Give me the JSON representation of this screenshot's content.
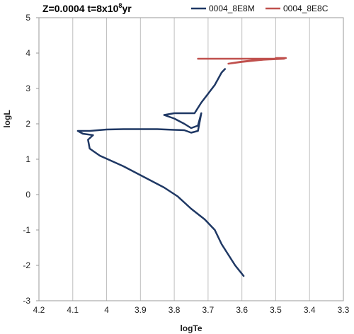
{
  "chart_data": {
    "type": "line",
    "title_parts": {
      "prefix": "Z=0.0004 t=8x10",
      "superscript": "8",
      "suffix": "yr"
    },
    "xlabel": "logTe",
    "ylabel": "logL",
    "xlim": [
      4.2,
      3.3
    ],
    "ylim": [
      -3,
      5
    ],
    "x_inverted": true,
    "x_ticks": [
      "4.2",
      "4.1",
      "4",
      "3.9",
      "3.8",
      "3.7",
      "3.6",
      "3.5",
      "3.4",
      "3.3"
    ],
    "y_ticks": [
      "5",
      "4",
      "3",
      "2",
      "1",
      "0",
      "-1",
      "-2",
      "-3"
    ],
    "grid": "vertical-major",
    "legend": "top-right",
    "series": [
      {
        "name": "0004_8E8M",
        "color": "#1f3864",
        "points": [
          [
            3.595,
            -2.3
          ],
          [
            3.62,
            -2.0
          ],
          [
            3.66,
            -1.4
          ],
          [
            3.68,
            -1.0
          ],
          [
            3.71,
            -0.7
          ],
          [
            3.75,
            -0.4
          ],
          [
            3.79,
            -0.05
          ],
          [
            3.83,
            0.2
          ],
          [
            3.89,
            0.5
          ],
          [
            3.95,
            0.8
          ],
          [
            4.02,
            1.1
          ],
          [
            4.05,
            1.3
          ],
          [
            4.055,
            1.55
          ],
          [
            4.04,
            1.68
          ],
          [
            4.07,
            1.72
          ],
          [
            4.085,
            1.8
          ],
          [
            4.05,
            1.8
          ],
          [
            4.0,
            1.84
          ],
          [
            3.95,
            1.85
          ],
          [
            3.9,
            1.85
          ],
          [
            3.85,
            1.85
          ],
          [
            3.8,
            1.83
          ],
          [
            3.77,
            1.82
          ],
          [
            3.75,
            1.75
          ],
          [
            3.73,
            1.8
          ],
          [
            3.72,
            2.3
          ],
          [
            3.73,
            1.95
          ],
          [
            3.75,
            1.88
          ],
          [
            3.77,
            2.0
          ],
          [
            3.8,
            2.15
          ],
          [
            3.83,
            2.25
          ],
          [
            3.8,
            2.3
          ],
          [
            3.78,
            2.3
          ],
          [
            3.75,
            2.3
          ],
          [
            3.74,
            2.3
          ],
          [
            3.72,
            2.6
          ],
          [
            3.7,
            2.85
          ],
          [
            3.68,
            3.1
          ],
          [
            3.66,
            3.45
          ],
          [
            3.65,
            3.55
          ]
        ]
      },
      {
        "name": "0004_8E8C",
        "color": "#c0504d",
        "points": [
          [
            3.73,
            3.84
          ],
          [
            3.65,
            3.84
          ],
          [
            3.55,
            3.84
          ],
          [
            3.475,
            3.84
          ],
          [
            3.52,
            3.82
          ],
          [
            3.56,
            3.8
          ],
          [
            3.6,
            3.76
          ],
          [
            3.64,
            3.7
          ],
          [
            3.6,
            3.75
          ],
          [
            3.55,
            3.8
          ],
          [
            3.5,
            3.84
          ],
          [
            3.47,
            3.86
          ],
          [
            3.5,
            3.86
          ]
        ]
      }
    ]
  }
}
